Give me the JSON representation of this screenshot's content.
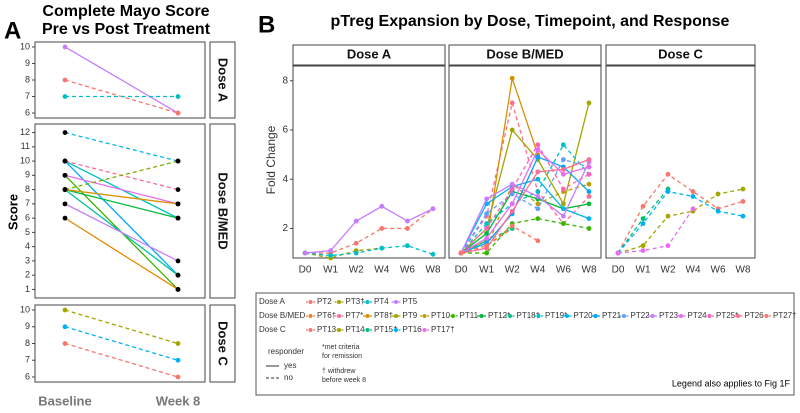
{
  "chart_data": [
    {
      "type": "paired-line",
      "panel_label": "A",
      "title": "Complete Mayo Score",
      "subtitle": "Pre vs Post Treatment",
      "y_label": "Score",
      "categories": [
        "Baseline",
        "Week 8"
      ],
      "facets": [
        {
          "label": "Dose A",
          "ylim": [
            5.7,
            10.3
          ],
          "yticks": [
            6,
            7,
            8,
            9,
            10
          ],
          "point_color": null,
          "series": [
            {
              "values": [
                10,
                6
              ],
              "color": "#C77CFF",
              "dash": false
            },
            {
              "values": [
                8,
                6
              ],
              "color": "#F8766D",
              "dash": true
            },
            {
              "values": [
                7,
                7
              ],
              "color": "#00BFC4",
              "dash": true
            }
          ]
        },
        {
          "label": "Dose B/MED",
          "ylim": [
            0.4,
            12.6
          ],
          "yticks": [
            1,
            2,
            3,
            4,
            5,
            6,
            7,
            8,
            9,
            10,
            11,
            12
          ],
          "point_color": "#000000",
          "series": [
            {
              "values": [
                12,
                10
              ],
              "color": "#00B8E5",
              "dash": true
            },
            {
              "values": [
                10,
                6
              ],
              "color": "#00BFC4",
              "dash": false
            },
            {
              "values": [
                10,
                8
              ],
              "color": "#FF6C91",
              "dash": true
            },
            {
              "values": [
                10,
                2
              ],
              "color": "#00A9FF",
              "dash": false
            },
            {
              "values": [
                9,
                7
              ],
              "color": "#E76BF3",
              "dash": false
            },
            {
              "values": [
                9,
                1
              ],
              "color": "#39B600",
              "dash": false
            },
            {
              "values": [
                8,
                10
              ],
              "color": "#7CAE00",
              "dash": true
            },
            {
              "values": [
                8,
                6
              ],
              "color": "#00BA38",
              "dash": false
            },
            {
              "values": [
                8,
                7
              ],
              "color": "#D89000",
              "dash": false
            },
            {
              "values": [
                8,
                2
              ],
              "color": "#00C19A",
              "dash": false
            },
            {
              "values": [
                7,
                3
              ],
              "color": "#C77CFF",
              "dash": false
            },
            {
              "values": [
                6,
                1
              ],
              "color": "#E58700",
              "dash": false
            }
          ]
        },
        {
          "label": "Dose C",
          "ylim": [
            5.7,
            10.3
          ],
          "yticks": [
            6,
            7,
            8,
            9,
            10
          ],
          "point_color": null,
          "series": [
            {
              "values": [
                10,
                8
              ],
              "color": "#A3A500",
              "dash": true
            },
            {
              "values": [
                9,
                7
              ],
              "color": "#00B0F6",
              "dash": true
            },
            {
              "values": [
                8,
                6
              ],
              "color": "#F8766D",
              "dash": true
            }
          ]
        }
      ]
    },
    {
      "type": "line",
      "panel_label": "B",
      "title": "pTreg Expansion by Dose, Timepoint, and Response",
      "y_label": "Fold Change",
      "categories": [
        "D0",
        "W1",
        "W2",
        "W4",
        "W6",
        "W8"
      ],
      "ylim": [
        0.8,
        8.6
      ],
      "yticks": [
        2,
        4,
        6,
        8
      ],
      "facets": [
        {
          "label": "Dose A",
          "series": [
            {
              "name": "PT2",
              "color": "#F8766D",
              "dash": true,
              "values": [
                1,
                1.0,
                1.4,
                2.0,
                2.0,
                2.8
              ]
            },
            {
              "name": "PT3†",
              "color": "#A3A500",
              "dash": true,
              "values": [
                1,
                0.8,
                1.1,
                1.2,
                null,
                null
              ]
            },
            {
              "name": "PT4",
              "color": "#00BFC4",
              "dash": true,
              "values": [
                1,
                0.9,
                1.0,
                1.2,
                1.3,
                0.95
              ]
            },
            {
              "name": "PT5",
              "color": "#C77CFF",
              "dash": false,
              "values": [
                1,
                1.1,
                2.3,
                2.9,
                2.3,
                2.8
              ]
            }
          ]
        },
        {
          "label": "Dose B/MED",
          "series": [
            {
              "name": "PT6†",
              "color": "#EA8331",
              "dash": true,
              "values": [
                1,
                1.3,
                2.0,
                null,
                null,
                null
              ]
            },
            {
              "name": "PT7*",
              "color": "#FF6C91",
              "dash": true,
              "values": [
                1,
                2.5,
                7.1,
                3.5,
                2.2,
                3.3
              ]
            },
            {
              "name": "PT8†",
              "color": "#D89000",
              "dash": false,
              "values": [
                1,
                1.5,
                8.1,
                5.0,
                null,
                null
              ]
            },
            {
              "name": "PT9",
              "color": "#A3A500",
              "dash": false,
              "values": [
                1,
                2.0,
                6.0,
                4.8,
                3.0,
                7.1
              ]
            },
            {
              "name": "PT10",
              "color": "#BB9D00",
              "dash": true,
              "values": [
                1,
                1.2,
                3.8,
                3.0,
                3.5,
                3.8
              ]
            },
            {
              "name": "PT11",
              "color": "#39B600",
              "dash": true,
              "values": [
                1,
                1.0,
                2.2,
                2.4,
                2.2,
                2.0
              ]
            },
            {
              "name": "PT12*",
              "color": "#00BA38",
              "dash": false,
              "values": [
                1,
                1.8,
                3.5,
                3.2,
                2.8,
                3.0
              ]
            },
            {
              "name": "PT18†",
              "color": "#00C08B",
              "dash": true,
              "values": [
                1,
                1.5,
                2.0,
                null,
                null,
                null
              ]
            },
            {
              "name": "PT19*",
              "color": "#00BFC4",
              "dash": true,
              "values": [
                1,
                2.2,
                3.0,
                3.5,
                5.4,
                4.2
              ]
            },
            {
              "name": "PT20",
              "color": "#00B4F0",
              "dash": false,
              "values": [
                1,
                3.0,
                3.7,
                4.0,
                2.8,
                2.4
              ]
            },
            {
              "name": "PT21",
              "color": "#00A5FF",
              "dash": false,
              "values": [
                1,
                1.4,
                2.6,
                4.9,
                4.5,
                3.5
              ]
            },
            {
              "name": "PT22",
              "color": "#619CFF",
              "dash": true,
              "values": [
                1,
                2.6,
                3.4,
                2.8,
                4.8,
                4.5
              ]
            },
            {
              "name": "PT23",
              "color": "#C77CFF",
              "dash": false,
              "values": [
                1,
                3.2,
                3.8,
                3.3,
                2.5,
                4.7
              ]
            },
            {
              "name": "PT24",
              "color": "#E76BF3",
              "dash": false,
              "values": [
                1,
                1.6,
                3.0,
                5.2,
                4.2,
                4.5
              ]
            },
            {
              "name": "PT25*",
              "color": "#FF62BC",
              "dash": true,
              "values": [
                1,
                2.0,
                3.6,
                5.4,
                3.6,
                4.2
              ]
            },
            {
              "name": "PT26",
              "color": "#FF6C91",
              "dash": false,
              "values": [
                1,
                1.2,
                2.7,
                4.3,
                4.4,
                4.8
              ]
            },
            {
              "name": "PT27†",
              "color": "#F8766D",
              "dash": true,
              "values": [
                1,
                1.3,
                2.1,
                1.5,
                null,
                null
              ]
            }
          ]
        },
        {
          "label": "Dose C",
          "series": [
            {
              "name": "PT13",
              "color": "#F8766D",
              "dash": true,
              "values": [
                1,
                2.9,
                4.2,
                3.5,
                2.8,
                3.1
              ]
            },
            {
              "name": "PT14",
              "color": "#A3A500",
              "dash": true,
              "values": [
                1,
                1.3,
                2.5,
                2.7,
                3.4,
                3.6
              ]
            },
            {
              "name": "PT15†",
              "color": "#00BF7D",
              "dash": true,
              "values": [
                1,
                2.4,
                3.6,
                null,
                null,
                null
              ]
            },
            {
              "name": "PT16",
              "color": "#00B0F6",
              "dash": true,
              "values": [
                1,
                2.2,
                3.5,
                3.3,
                2.7,
                2.5
              ]
            },
            {
              "name": "PT17†",
              "color": "#E76BF3",
              "dash": true,
              "values": [
                1,
                1.1,
                1.3,
                2.8,
                null,
                null
              ]
            }
          ]
        }
      ],
      "responder": {
        "title": "responder",
        "levels": [
          {
            "label": "yes",
            "dash": false
          },
          {
            "label": "no",
            "dash": true
          }
        ]
      },
      "notes": [
        "*met criteria",
        "for remission",
        "† withdrew",
        "before week 8"
      ],
      "footnote": "Legend also applies to Fig 1F"
    }
  ]
}
